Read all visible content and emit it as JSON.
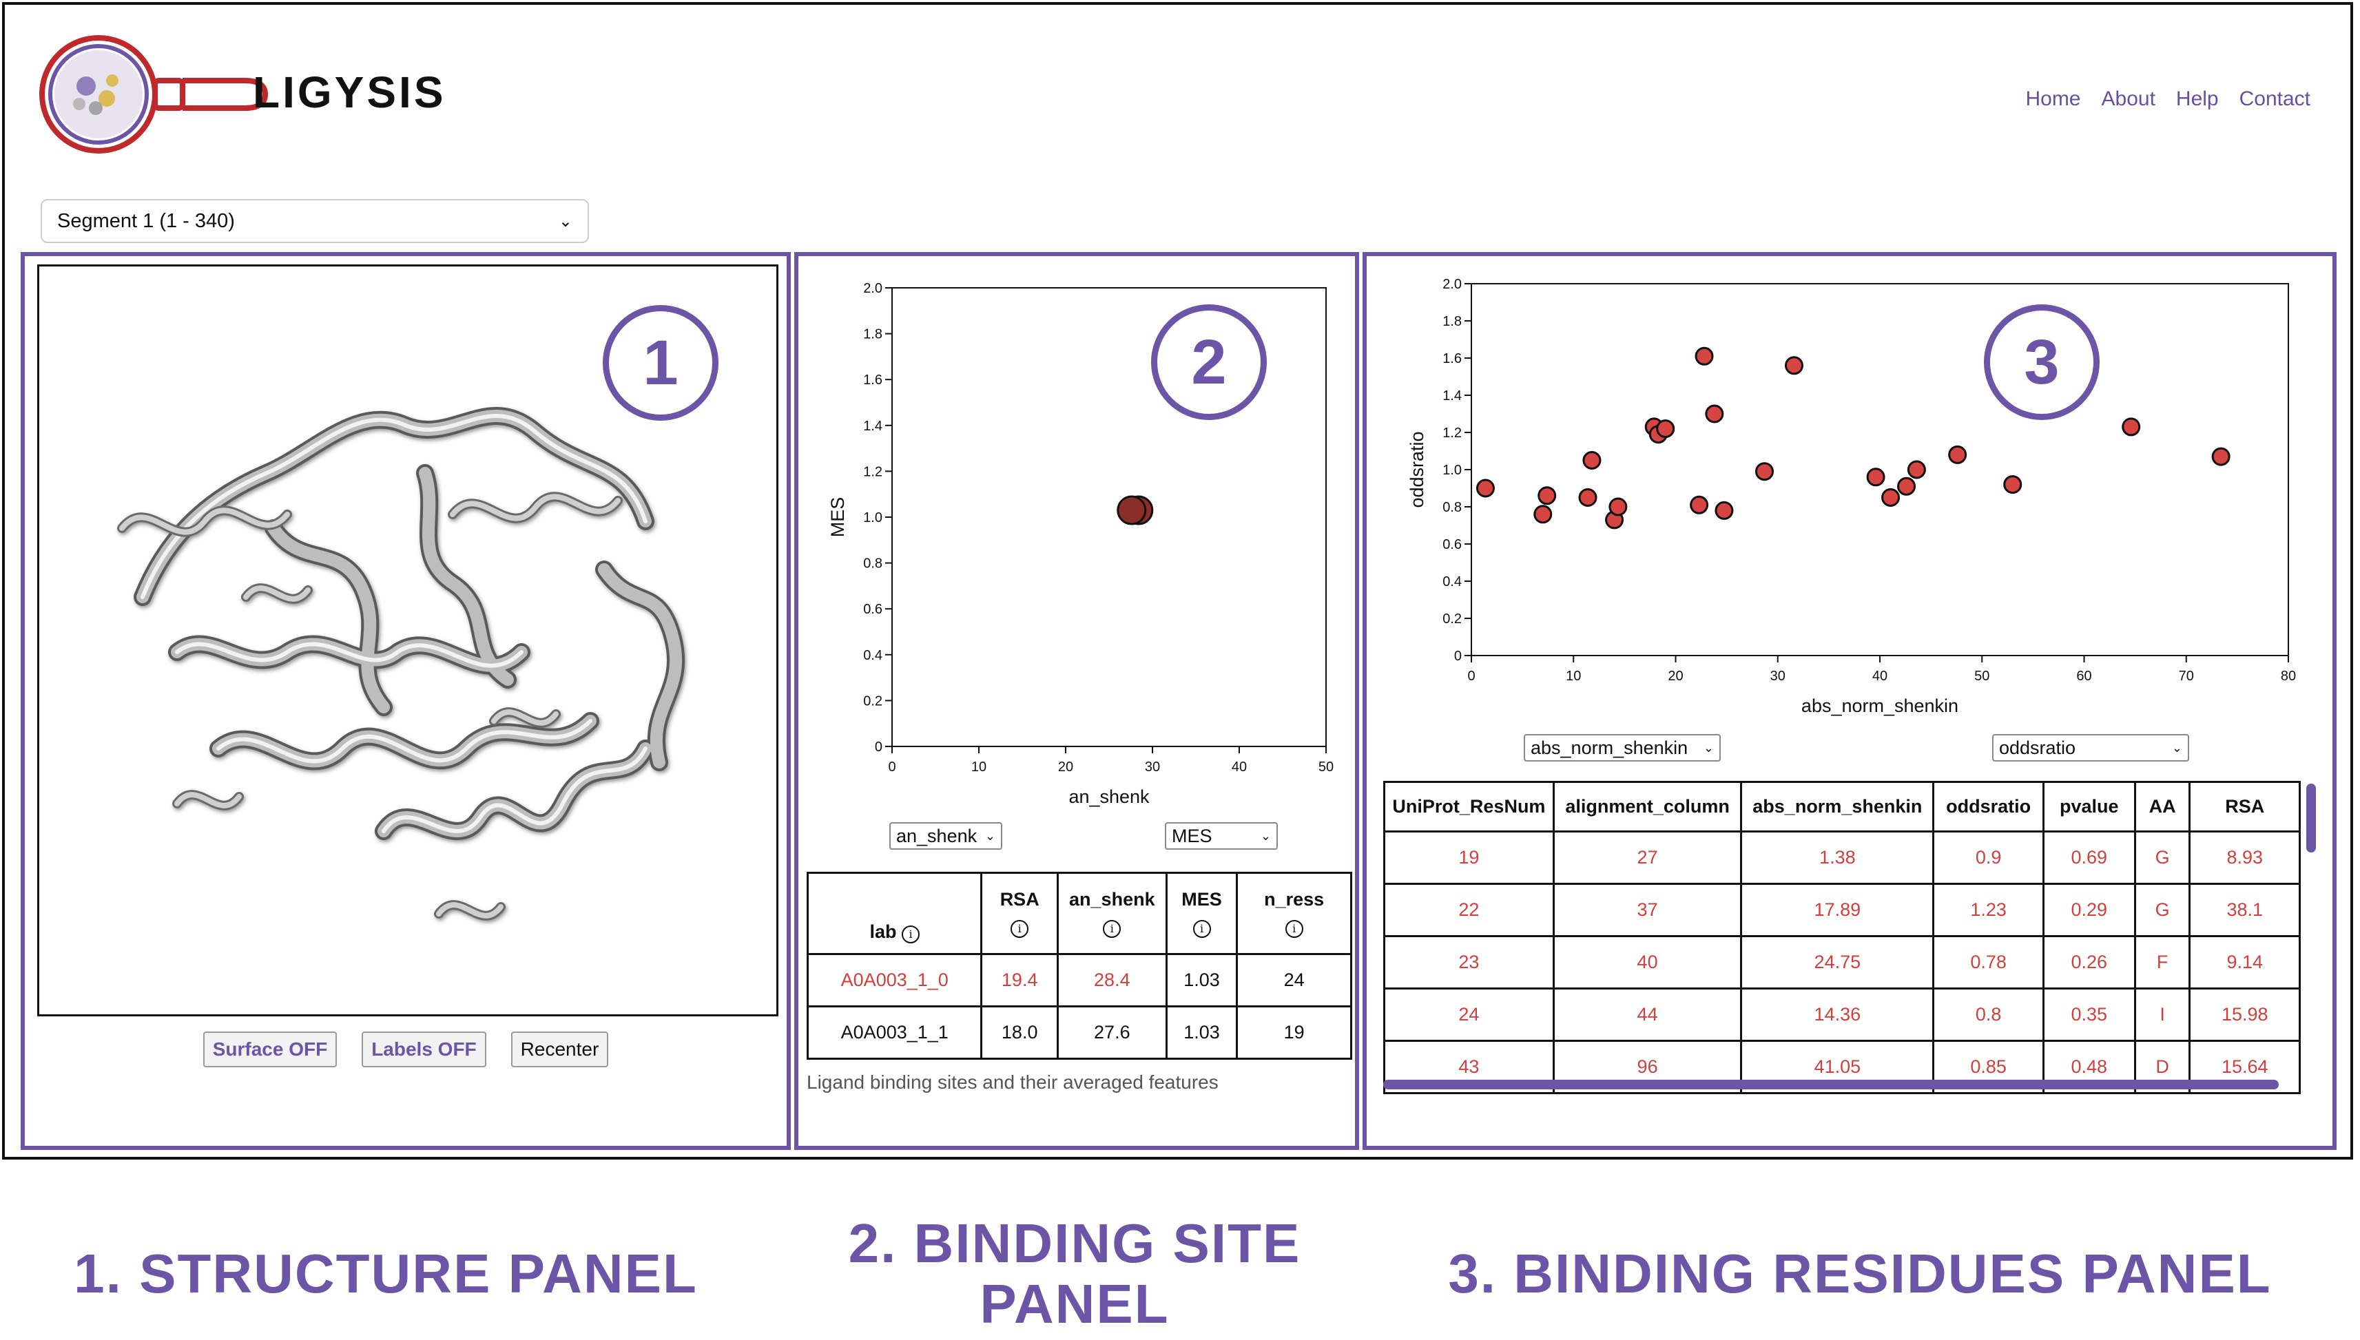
{
  "header": {
    "logo_text": "LIGYSIS",
    "nav": [
      "Home",
      "About",
      "Help",
      "Contact"
    ]
  },
  "segment_select": {
    "value": "Segment 1 (1 - 340)"
  },
  "structure_panel": {
    "number": "1",
    "buttons": {
      "surface": "Surface OFF",
      "labels": "Labels OFF",
      "recenter": "Recenter"
    }
  },
  "binding_site_panel": {
    "number": "2",
    "x_select": "an_shenk",
    "y_select": "MES",
    "table": {
      "headers": [
        "lab",
        "RSA",
        "an_shenk",
        "MES",
        "n_ress"
      ],
      "rows": [
        [
          "A0A003_1_0",
          "19.4",
          "28.4",
          "1.03",
          "24"
        ],
        [
          "A0A003_1_1",
          "18.0",
          "27.6",
          "1.03",
          "19"
        ]
      ]
    },
    "caption": "Ligand binding sites and their averaged features"
  },
  "binding_residues_panel": {
    "number": "3",
    "x_select": "abs_norm_shenkin",
    "y_select": "oddsratio",
    "table": {
      "headers": [
        "UniProt_ResNum",
        "alignment_column",
        "abs_norm_shenkin",
        "oddsratio",
        "pvalue",
        "AA",
        "RSA"
      ],
      "rows": [
        [
          "19",
          "27",
          "1.38",
          "0.9",
          "0.69",
          "G",
          "8.93"
        ],
        [
          "22",
          "37",
          "17.89",
          "1.23",
          "0.29",
          "G",
          "38.1"
        ],
        [
          "23",
          "40",
          "24.75",
          "0.78",
          "0.26",
          "F",
          "9.14"
        ],
        [
          "24",
          "44",
          "14.36",
          "0.8",
          "0.35",
          "I",
          "15.98"
        ],
        [
          "43",
          "96",
          "41.05",
          "0.85",
          "0.48",
          "D",
          "15.64"
        ]
      ]
    }
  },
  "bottom_labels": {
    "p1": "1. STRUCTURE PANEL",
    "p2_line1": "2. BINDING SITE",
    "p2_line2": "PANEL",
    "p3": "3. BINDING RESIDUES PANEL"
  },
  "colors": {
    "accent": "#6c55a6",
    "point_fill": "#d64541",
    "point_fill_dark": "#8b2e2a",
    "value_text": "#d0413d"
  },
  "chart_data": [
    {
      "type": "scatter",
      "title": "",
      "xlabel": "an_shenk",
      "ylabel": "MES",
      "xlim": [
        0,
        50
      ],
      "ylim": [
        0,
        2.0
      ],
      "xticks": [
        "0",
        "10",
        "20",
        "30",
        "40",
        "50"
      ],
      "yticks": [
        "0",
        "0.2",
        "0.4",
        "0.6",
        "0.8",
        "1.0",
        "1.2",
        "1.4",
        "1.6",
        "1.8",
        "2.0"
      ],
      "points": [
        {
          "x": 28.4,
          "y": 1.03
        },
        {
          "x": 27.6,
          "y": 1.03
        }
      ]
    },
    {
      "type": "scatter",
      "title": "",
      "xlabel": "abs_norm_shenkin",
      "ylabel": "oddsratio",
      "xlim": [
        0,
        80
      ],
      "ylim": [
        0,
        2.0
      ],
      "xticks": [
        "0",
        "10",
        "20",
        "30",
        "40",
        "50",
        "60",
        "70",
        "80"
      ],
      "yticks": [
        "0",
        "0.2",
        "0.4",
        "0.6",
        "0.8",
        "1.0",
        "1.2",
        "1.4",
        "1.6",
        "1.8",
        "2.0"
      ],
      "points": [
        {
          "x": 1.38,
          "y": 0.9
        },
        {
          "x": 7.0,
          "y": 0.76
        },
        {
          "x": 7.4,
          "y": 0.86
        },
        {
          "x": 11.8,
          "y": 1.05
        },
        {
          "x": 11.4,
          "y": 0.85
        },
        {
          "x": 14.0,
          "y": 0.73
        },
        {
          "x": 14.36,
          "y": 0.8
        },
        {
          "x": 17.89,
          "y": 1.23
        },
        {
          "x": 18.3,
          "y": 1.19
        },
        {
          "x": 19.0,
          "y": 1.22
        },
        {
          "x": 22.3,
          "y": 0.81
        },
        {
          "x": 22.8,
          "y": 1.61
        },
        {
          "x": 23.8,
          "y": 1.3
        },
        {
          "x": 24.75,
          "y": 0.78
        },
        {
          "x": 28.7,
          "y": 0.99
        },
        {
          "x": 31.6,
          "y": 1.56
        },
        {
          "x": 39.6,
          "y": 0.96
        },
        {
          "x": 41.05,
          "y": 0.85
        },
        {
          "x": 42.6,
          "y": 0.91
        },
        {
          "x": 43.6,
          "y": 1.0
        },
        {
          "x": 47.6,
          "y": 1.08
        },
        {
          "x": 53.0,
          "y": 0.92
        },
        {
          "x": 64.6,
          "y": 1.23
        },
        {
          "x": 73.4,
          "y": 1.07
        }
      ]
    }
  ]
}
